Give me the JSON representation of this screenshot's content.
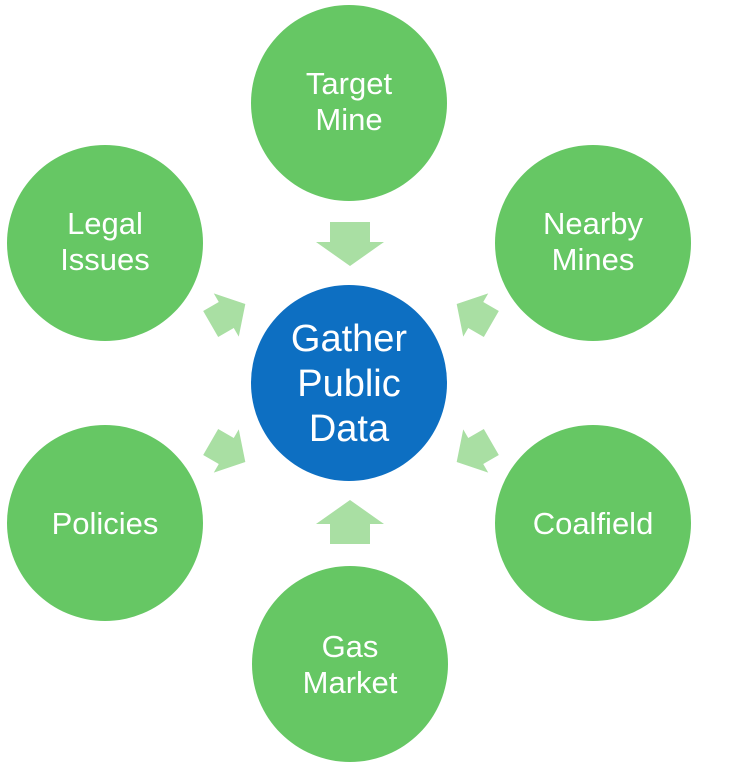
{
  "colors": {
    "outer_fill": "#66c764",
    "center_fill": "#0d6fc2",
    "arrow_fill": "#a9dfa3",
    "text": "#ffffff"
  },
  "center": {
    "lines": [
      "Gather",
      "Public",
      "Data"
    ]
  },
  "nodes": [
    {
      "id": "target-mine",
      "lines": [
        "Target",
        "Mine"
      ]
    },
    {
      "id": "nearby-mines",
      "lines": [
        "Nearby",
        "Mines"
      ]
    },
    {
      "id": "coalfield",
      "lines": [
        "Coalfield"
      ]
    },
    {
      "id": "gas-market",
      "lines": [
        "Gas",
        "Market"
      ]
    },
    {
      "id": "policies",
      "lines": [
        "Policies"
      ]
    },
    {
      "id": "legal-issues",
      "lines": [
        "Legal",
        "Issues"
      ]
    }
  ]
}
